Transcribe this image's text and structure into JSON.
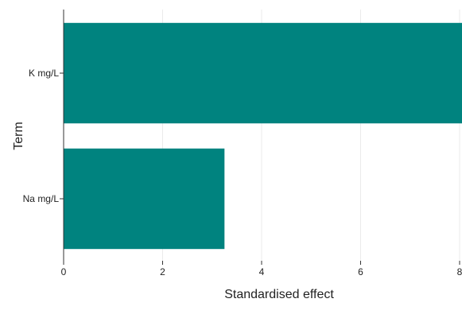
{
  "chart_data": {
    "type": "bar",
    "orientation": "horizontal",
    "categories": [
      "K mg/L",
      "Na mg/L"
    ],
    "values": [
      8.1,
      3.25
    ],
    "xlabel": "Standardised effect",
    "ylabel": "Term",
    "xlim": [
      0,
      8
    ],
    "xticks": [
      "0",
      "2",
      "4",
      "6",
      "8"
    ],
    "grid": "vertical",
    "bar_color": "#00837f"
  }
}
